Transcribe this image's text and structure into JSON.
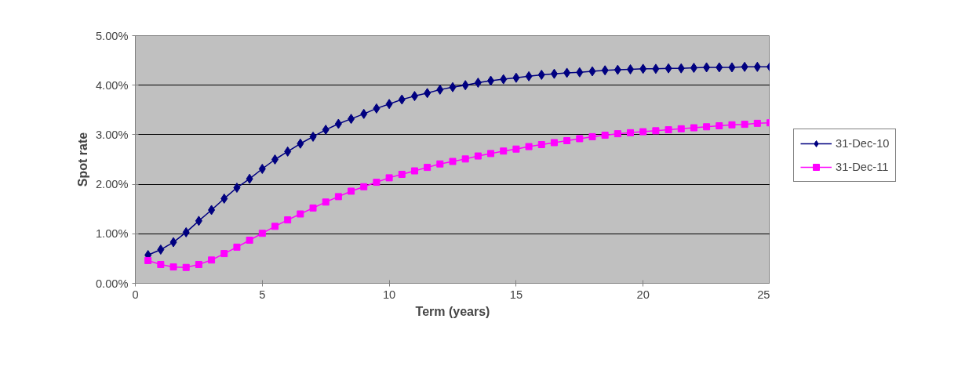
{
  "chart_data": {
    "type": "line",
    "xlabel": "Term (years)",
    "ylabel": "Spot rate",
    "x": [
      0.5,
      1,
      1.5,
      2,
      2.5,
      3,
      3.5,
      4,
      4.5,
      5,
      5.5,
      6,
      6.5,
      7,
      7.5,
      8,
      8.5,
      9,
      9.5,
      10,
      10.5,
      11,
      11.5,
      12,
      12.5,
      13,
      13.5,
      14,
      14.5,
      15,
      15.5,
      16,
      16.5,
      17,
      17.5,
      18,
      18.5,
      19,
      19.5,
      20,
      20.5,
      21,
      21.5,
      22,
      22.5,
      23,
      23.5,
      24,
      24.5,
      25
    ],
    "series": [
      {
        "name": "31-Dec-10",
        "color": "#000080",
        "marker": "diamond",
        "values": [
          0.57,
          0.68,
          0.83,
          1.03,
          1.26,
          1.48,
          1.71,
          1.93,
          2.11,
          2.31,
          2.5,
          2.66,
          2.82,
          2.96,
          3.1,
          3.22,
          3.32,
          3.42,
          3.53,
          3.62,
          3.71,
          3.78,
          3.84,
          3.91,
          3.96,
          4.0,
          4.05,
          4.09,
          4.12,
          4.15,
          4.18,
          4.21,
          4.23,
          4.25,
          4.26,
          4.28,
          4.3,
          4.31,
          4.32,
          4.33,
          4.33,
          4.34,
          4.34,
          4.35,
          4.36,
          4.36,
          4.36,
          4.37,
          4.37,
          4.37
        ]
      },
      {
        "name": "31-Dec-11",
        "color": "#ff00ff",
        "marker": "square",
        "values": [
          0.46,
          0.38,
          0.33,
          0.32,
          0.38,
          0.47,
          0.6,
          0.73,
          0.87,
          1.01,
          1.15,
          1.28,
          1.4,
          1.52,
          1.64,
          1.75,
          1.86,
          1.95,
          2.04,
          2.13,
          2.2,
          2.27,
          2.34,
          2.41,
          2.46,
          2.51,
          2.57,
          2.62,
          2.67,
          2.71,
          2.76,
          2.8,
          2.84,
          2.88,
          2.92,
          2.96,
          2.99,
          3.02,
          3.04,
          3.06,
          3.08,
          3.1,
          3.12,
          3.14,
          3.16,
          3.18,
          3.2,
          3.21,
          3.23,
          3.24
        ]
      }
    ],
    "xlim": [
      0,
      25
    ],
    "xticks": [
      0,
      5,
      10,
      15,
      20,
      25
    ],
    "ylim": [
      0,
      5
    ],
    "yticks": [
      {
        "value": 0,
        "label": "0.00%"
      },
      {
        "value": 1,
        "label": "1.00%"
      },
      {
        "value": 2,
        "label": "2.00%"
      },
      {
        "value": 3,
        "label": "3.00%"
      },
      {
        "value": 4,
        "label": "4.00%"
      },
      {
        "value": 5,
        "label": "5.00%"
      }
    ],
    "grid": "y",
    "legend": "right",
    "line_style": "solid"
  }
}
